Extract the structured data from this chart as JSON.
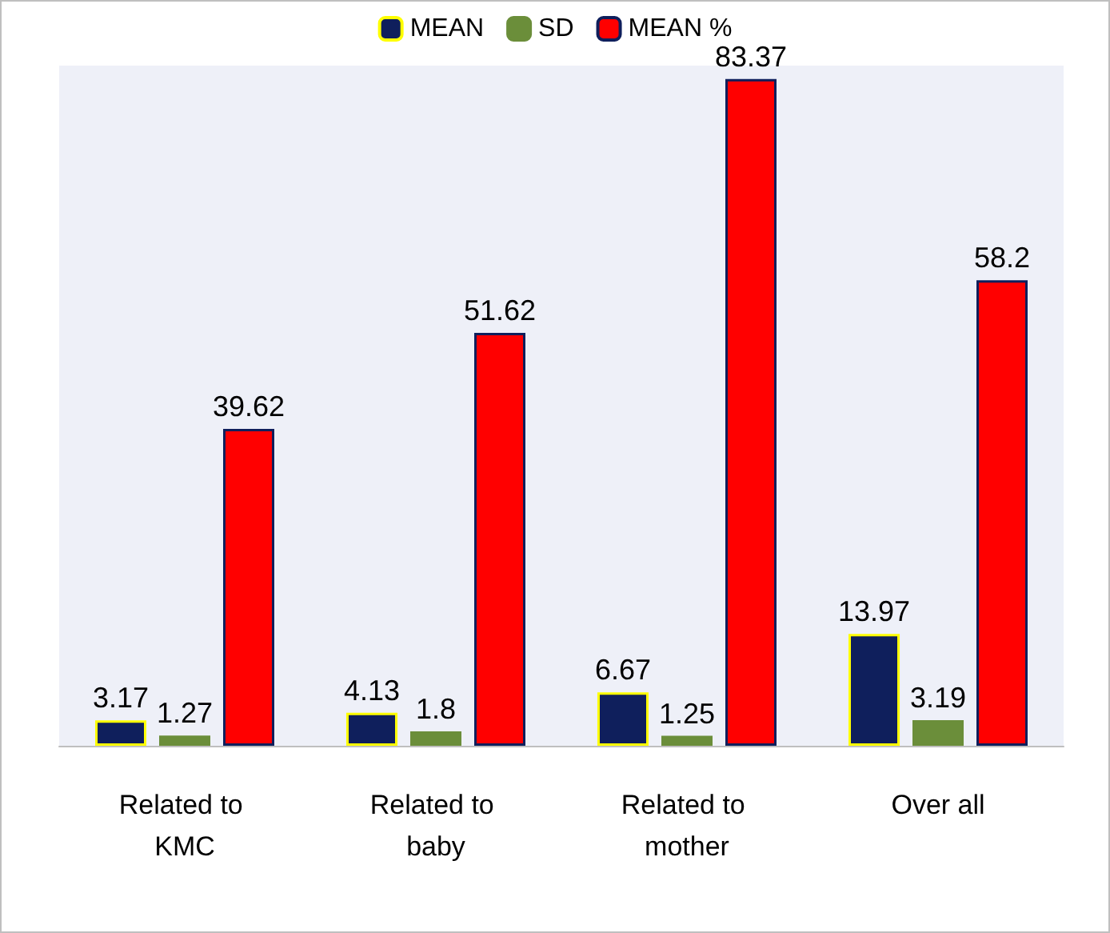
{
  "chart_data": {
    "type": "bar",
    "categories": [
      "Related to KMC",
      "Related to baby",
      "Related to mother",
      "Over all"
    ],
    "series": [
      {
        "name": "MEAN",
        "color": "#0f1f5c",
        "values": [
          3.17,
          4.13,
          6.67,
          13.97
        ]
      },
      {
        "name": "SD",
        "color": "#6b8e3a",
        "values": [
          1.27,
          1.8,
          1.25,
          3.19
        ]
      },
      {
        "name": "MEAN %",
        "color": "#ff0000",
        "values": [
          39.62,
          51.62,
          83.37,
          58.2
        ]
      }
    ],
    "data_labels": true,
    "legend": "top"
  }
}
